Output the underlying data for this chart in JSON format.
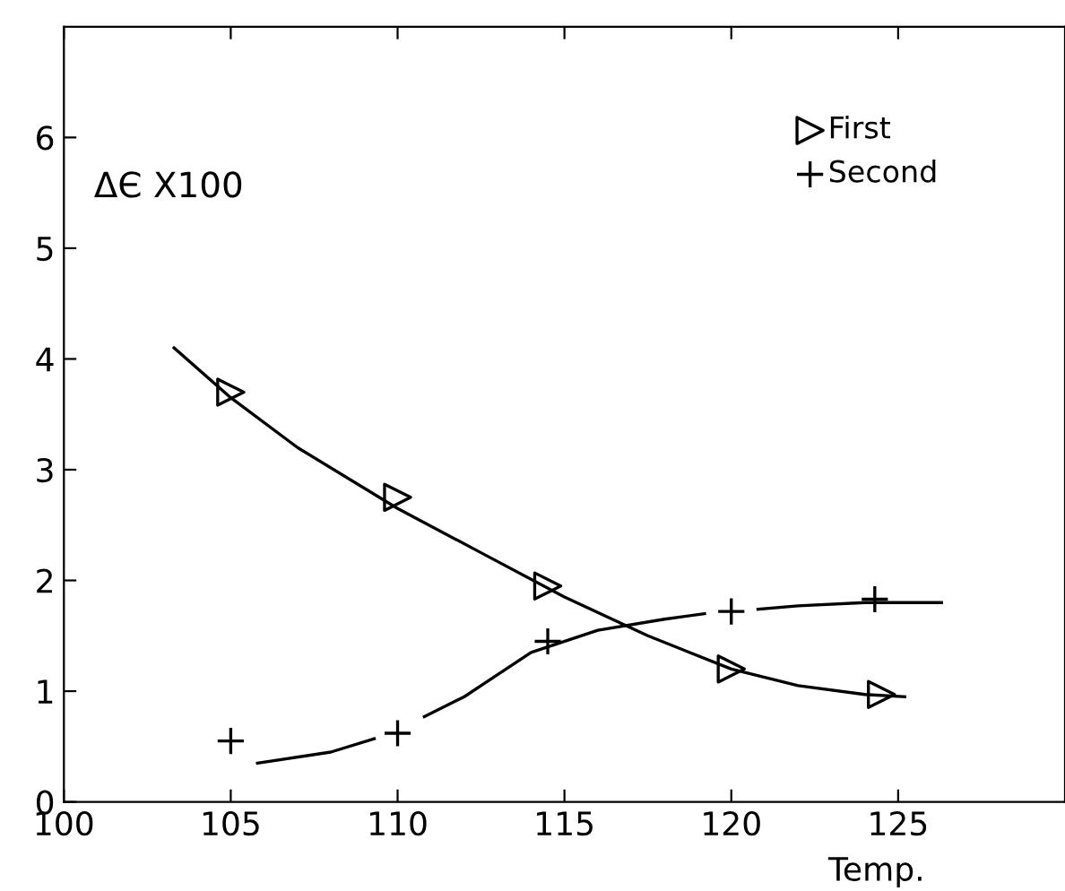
{
  "chart_data": {
    "type": "scatter",
    "ylabel": "ΔЄ X100",
    "xlabel": "Temp.",
    "xlim": [
      100,
      130
    ],
    "xticks": [
      100,
      105,
      110,
      115,
      120,
      125
    ],
    "ylim": [
      0,
      7
    ],
    "yticks": [
      0,
      1,
      2,
      3,
      4,
      5,
      6
    ],
    "grid": false,
    "legend": "top right",
    "series": [
      {
        "name": "First",
        "color": "#000000",
        "marker": "triangle",
        "x": [
          105,
          110,
          114.5,
          120,
          124.5
        ],
        "values": [
          3.7,
          2.75,
          1.95,
          1.2,
          0.97
        ]
      },
      {
        "name": "Second",
        "color": "#000000",
        "marker": "cross",
        "x": [
          105,
          110,
          114.5,
          120,
          124.3
        ],
        "values": [
          0.55,
          0.62,
          1.45,
          1.72,
          1.83
        ]
      },
      {
        "type": "line",
        "color": "#000000",
        "marker": "none",
        "line_style": "solid",
        "x": [
          103.3,
          105,
          107,
          110,
          112.5,
          115,
          117.5,
          120,
          122,
          124,
          125.2
        ],
        "values": [
          4.1,
          3.65,
          3.2,
          2.65,
          2.25,
          1.85,
          1.5,
          1.2,
          1.05,
          0.97,
          0.95
        ]
      },
      {
        "type": "line",
        "color": "#000000",
        "marker": "none",
        "line_style": "solid",
        "x": [
          105.8,
          108,
          109.3,
          110,
          110.8,
          112,
          114,
          116,
          118,
          119.2,
          120,
          120.8,
          122,
          124,
          126.3
        ],
        "values": [
          0.35,
          0.45,
          0.57,
          null,
          0.77,
          0.95,
          1.35,
          1.55,
          1.65,
          1.7,
          null,
          1.74,
          1.77,
          1.8,
          1.8
        ]
      }
    ]
  }
}
